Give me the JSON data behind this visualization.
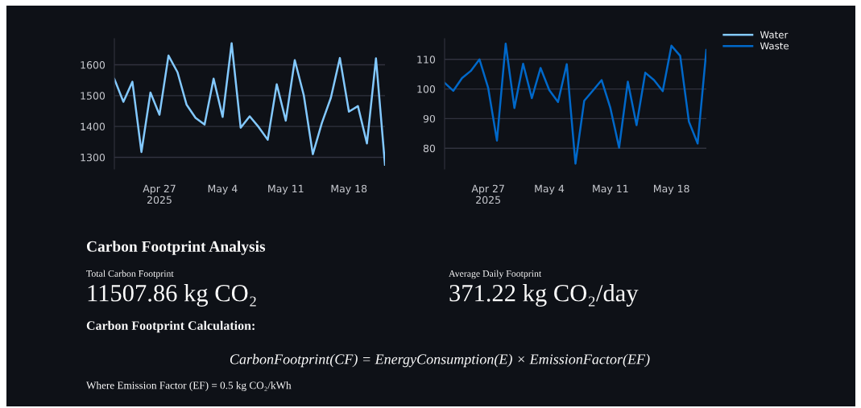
{
  "chart_data": [
    {
      "type": "line",
      "x": [
        "2025-04-22",
        "2025-04-23",
        "2025-04-24",
        "2025-04-25",
        "2025-04-26",
        "2025-04-27",
        "2025-04-28",
        "2025-04-29",
        "2025-04-30",
        "2025-05-01",
        "2025-05-02",
        "2025-05-03",
        "2025-05-04",
        "2025-05-05",
        "2025-05-06",
        "2025-05-07",
        "2025-05-08",
        "2025-05-09",
        "2025-05-10",
        "2025-05-11",
        "2025-05-12",
        "2025-05-13",
        "2025-05-14",
        "2025-05-15",
        "2025-05-16",
        "2025-05-17",
        "2025-05-18",
        "2025-05-19",
        "2025-05-20",
        "2025-05-21",
        "2025-05-22"
      ],
      "series": [
        {
          "name": "Water",
          "color": "#83c9ff",
          "values": [
            1554,
            1480,
            1545,
            1317,
            1510,
            1438,
            1630,
            1576,
            1471,
            1428,
            1406,
            1555,
            1431,
            1670,
            1396,
            1433,
            1398,
            1357,
            1537,
            1419,
            1615,
            1501,
            1310,
            1411,
            1493,
            1622,
            1448,
            1466,
            1345,
            1621,
            1276
          ]
        }
      ],
      "xlim": [
        "2025-04-22",
        "2025-05-22"
      ],
      "xticks": [
        {
          "value": "2025-04-27",
          "label": "Apr 27\n2025"
        },
        {
          "value": "2025-05-04",
          "label": "May 4"
        },
        {
          "value": "2025-05-11",
          "label": "May 11"
        },
        {
          "value": "2025-05-18",
          "label": "May 18"
        }
      ],
      "ylim": [
        1262,
        1685
      ],
      "yticks": [
        1300,
        1400,
        1500,
        1600
      ],
      "grid": "y",
      "legend": "top right"
    },
    {
      "type": "line",
      "x": [
        "2025-04-22",
        "2025-04-23",
        "2025-04-24",
        "2025-04-25",
        "2025-04-26",
        "2025-04-27",
        "2025-04-28",
        "2025-04-29",
        "2025-04-30",
        "2025-05-01",
        "2025-05-02",
        "2025-05-03",
        "2025-05-04",
        "2025-05-05",
        "2025-05-06",
        "2025-05-07",
        "2025-05-08",
        "2025-05-09",
        "2025-05-10",
        "2025-05-11",
        "2025-05-12",
        "2025-05-13",
        "2025-05-14",
        "2025-05-15",
        "2025-05-16",
        "2025-05-17",
        "2025-05-18",
        "2025-05-19",
        "2025-05-20",
        "2025-05-21",
        "2025-05-22"
      ],
      "series": [
        {
          "name": "Waste",
          "color": "#0068c9",
          "values": [
            102.1,
            99.4,
            103.7,
            106.1,
            110,
            100.3,
            82.6,
            115.3,
            93.6,
            108.5,
            96.9,
            107.1,
            99.6,
            95.6,
            108.4,
            74.8,
            96.0,
            99.5,
            103,
            93.6,
            80.2,
            102.5,
            87.8,
            105.5,
            103,
            99.3,
            114.6,
            111.2,
            89,
            81.6,
            113.2
          ]
        }
      ],
      "xlim": [
        "2025-04-22",
        "2025-05-22"
      ],
      "xticks": [
        {
          "value": "2025-04-27",
          "label": "Apr 27\n2025"
        },
        {
          "value": "2025-05-04",
          "label": "May 4"
        },
        {
          "value": "2025-05-11",
          "label": "May 11"
        },
        {
          "value": "2025-05-18",
          "label": "May 18"
        }
      ],
      "ylim": [
        73,
        117
      ],
      "yticks": [
        80,
        90,
        100,
        110
      ],
      "grid": "y",
      "legend": "top right"
    },
    {
      "type": "other",
      "title": "Carbon Footprint Analysis",
      "annotations": [
        "Total Carbon Footprint",
        "11507.86 kg CO₂",
        "Average Daily Footprint",
        "371.22 kg CO₂/day",
        "Carbon Footprint Calculation:",
        "CarbonFootprint(CF) = EnergyConsumption(E) × EmissionFactor(EF)",
        "Where Emission Factor (EF) = 0.5 kg CO₂/kWh"
      ]
    }
  ]
}
